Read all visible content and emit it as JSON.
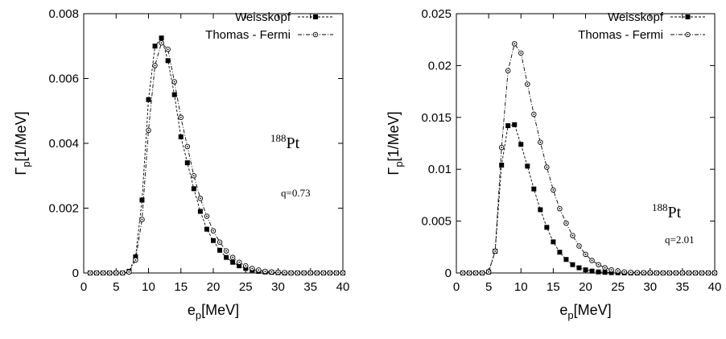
{
  "chart_data": [
    {
      "type": "line",
      "xlabel_main": "e",
      "xlabel_sub": "p",
      "xlabel_rest": "[MeV]",
      "ylabel_main": "Γ",
      "ylabel_sub": "p",
      "ylabel_rest": "[1/MeV]",
      "xlim": [
        0,
        40
      ],
      "ylim": [
        0,
        0.008
      ],
      "xticks": [
        0,
        5,
        10,
        15,
        20,
        25,
        30,
        35,
        40
      ],
      "yticks": [
        0,
        0.002,
        0.004,
        0.006,
        0.008
      ],
      "ytick_labels": [
        "0",
        "0.002",
        "0.004",
        "0.006",
        "0.008"
      ],
      "grid": false,
      "legend_position": "top-right",
      "annotation_nucleus_mass": "188",
      "annotation_nucleus_symbol": "Pt",
      "annotation_q": "q=0.73",
      "series": [
        {
          "name": "Weisskopf",
          "marker": "filled-square",
          "line_style": "dashed",
          "x": [
            1,
            2,
            3,
            4,
            5,
            6,
            7,
            8,
            9,
            10,
            11,
            12,
            13,
            14,
            15,
            16,
            17,
            18,
            19,
            20,
            21,
            22,
            23,
            24,
            25,
            26,
            27,
            28,
            29,
            30,
            31,
            32,
            33,
            34,
            35,
            36,
            37,
            38,
            39,
            40
          ],
          "y": [
            0,
            0,
            0,
            0,
            0,
            0,
            5e-05,
            0.0005,
            0.00225,
            0.00535,
            0.007,
            0.00725,
            0.00655,
            0.0055,
            0.0042,
            0.0034,
            0.0026,
            0.0019,
            0.00135,
            0.001,
            0.0007,
            0.00048,
            0.00033,
            0.00022,
            0.00014,
            9e-05,
            5e-05,
            3e-05,
            2e-05,
            1e-05,
            0,
            0,
            0,
            0,
            0,
            0,
            0,
            0,
            0,
            0
          ]
        },
        {
          "name": "Thomas - Fermi",
          "marker": "open-circle",
          "line_style": "dash-dot",
          "x": [
            1,
            2,
            3,
            4,
            5,
            6,
            7,
            8,
            9,
            10,
            11,
            12,
            13,
            14,
            15,
            16,
            17,
            18,
            19,
            20,
            21,
            22,
            23,
            24,
            25,
            26,
            27,
            28,
            29,
            30,
            31,
            32,
            33,
            34,
            35,
            36,
            37,
            38,
            39,
            40
          ],
          "y": [
            0,
            0,
            0,
            0,
            0,
            0,
            3e-05,
            0.0004,
            0.00165,
            0.0044,
            0.0064,
            0.0071,
            0.0069,
            0.0059,
            0.0048,
            0.0039,
            0.003,
            0.0023,
            0.00175,
            0.0013,
            0.00095,
            0.00068,
            0.00048,
            0.00033,
            0.00022,
            0.00014,
            9e-05,
            5e-05,
            3e-05,
            2e-05,
            1e-05,
            0,
            0,
            0,
            0,
            0,
            0,
            0,
            0,
            0
          ]
        }
      ]
    },
    {
      "type": "line",
      "xlabel_main": "e",
      "xlabel_sub": "p",
      "xlabel_rest": "[MeV]",
      "ylabel_main": "Γ",
      "ylabel_sub": "p",
      "ylabel_rest": "[1/MeV]",
      "xlim": [
        0,
        40
      ],
      "ylim": [
        0,
        0.025
      ],
      "xticks": [
        0,
        5,
        10,
        15,
        20,
        25,
        30,
        35,
        40
      ],
      "yticks": [
        0,
        0.005,
        0.01,
        0.015,
        0.02,
        0.025
      ],
      "ytick_labels": [
        "0",
        "0.005",
        "0.01",
        "0.015",
        "0.02",
        "0.025"
      ],
      "grid": false,
      "legend_position": "top-right",
      "annotation_nucleus_mass": "188",
      "annotation_nucleus_symbol": "Pt",
      "annotation_q": "q=2.01",
      "series": [
        {
          "name": "Weisskopf",
          "marker": "filled-square",
          "line_style": "dashed",
          "x": [
            1,
            2,
            3,
            4,
            5,
            6,
            7,
            8,
            9,
            10,
            11,
            12,
            13,
            14,
            15,
            16,
            17,
            18,
            19,
            20,
            21,
            22,
            23,
            24,
            25,
            26,
            27,
            28,
            29,
            30,
            31,
            32,
            33,
            34,
            35,
            36,
            37,
            38,
            39,
            40
          ],
          "y": [
            0,
            0,
            0,
            0,
            0.0001,
            0.0021,
            0.0104,
            0.0142,
            0.0143,
            0.0124,
            0.0103,
            0.0081,
            0.0061,
            0.0044,
            0.003,
            0.002,
            0.0013,
            0.0008,
            0.0005,
            0.0003,
            0.00018,
            0.0001,
            6e-05,
            3e-05,
            2e-05,
            1e-05,
            0,
            0,
            0,
            0,
            0,
            0,
            0,
            0,
            0,
            0,
            0,
            0,
            0,
            0
          ]
        },
        {
          "name": "Thomas - Fermi",
          "marker": "open-circle",
          "line_style": "dash-dot",
          "x": [
            1,
            2,
            3,
            4,
            5,
            6,
            7,
            8,
            9,
            10,
            11,
            12,
            13,
            14,
            15,
            16,
            17,
            18,
            19,
            20,
            21,
            22,
            23,
            24,
            25,
            26,
            27,
            28,
            29,
            30,
            31,
            32,
            33,
            34,
            35,
            36,
            37,
            38,
            39,
            40
          ],
          "y": [
            0,
            0,
            0,
            0,
            0.0001,
            0.0021,
            0.0121,
            0.0195,
            0.0221,
            0.0212,
            0.0182,
            0.0153,
            0.0126,
            0.0102,
            0.008,
            0.0062,
            0.0048,
            0.0036,
            0.0026,
            0.0018,
            0.0012,
            0.0008,
            0.0005,
            0.0003,
            0.0002,
            0.0001,
            5e-05,
            3e-05,
            2e-05,
            1e-05,
            0,
            0,
            0,
            0,
            0,
            0,
            0,
            0,
            0,
            0
          ]
        }
      ]
    }
  ]
}
